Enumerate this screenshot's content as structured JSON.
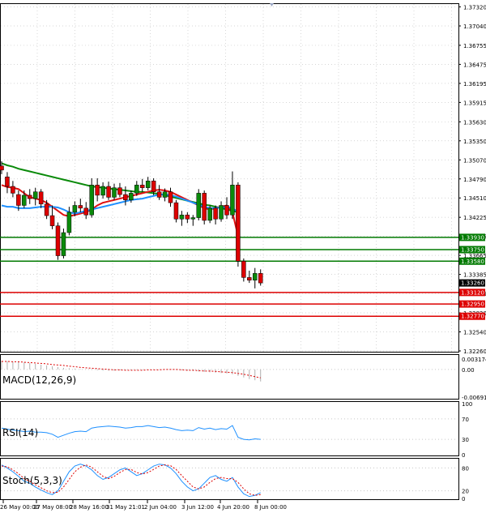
{
  "chart_data": {
    "type": "candlestick",
    "price_axis": {
      "ticks": [
        "1.37320",
        "1.37040",
        "1.36755",
        "1.36475",
        "1.36195",
        "1.35915",
        "1.35630",
        "1.35350",
        "1.35070",
        "1.34790",
        "1.34510",
        "1.34225",
        "1.33945",
        "1.33665",
        "1.33385",
        "1.33105",
        "1.32820",
        "1.32540",
        "1.32260"
      ],
      "min": 1.3226,
      "max": 1.3735
    },
    "time_axis": {
      "labels": [
        "26 May 00:00",
        "27 May 08:00",
        "28 May 16:00",
        "31 May 21:01",
        "2 Jun 04:00",
        "3 Jun 12:00",
        "4 Jun 20:00",
        "8 Jun 00:00"
      ]
    },
    "candles": [
      {
        "o": 1.3498,
        "h": 1.3505,
        "l": 1.3486,
        "c": 1.3492
      },
      {
        "o": 1.3482,
        "h": 1.3489,
        "l": 1.3458,
        "c": 1.3468
      },
      {
        "o": 1.3468,
        "h": 1.3476,
        "l": 1.3452,
        "c": 1.3458
      },
      {
        "o": 1.3456,
        "h": 1.3462,
        "l": 1.3432,
        "c": 1.344
      },
      {
        "o": 1.344,
        "h": 1.3462,
        "l": 1.3436,
        "c": 1.3455
      },
      {
        "o": 1.3455,
        "h": 1.3464,
        "l": 1.3442,
        "c": 1.345
      },
      {
        "o": 1.345,
        "h": 1.3466,
        "l": 1.344,
        "c": 1.346
      },
      {
        "o": 1.346,
        "h": 1.3464,
        "l": 1.3436,
        "c": 1.3442
      },
      {
        "o": 1.3442,
        "h": 1.3448,
        "l": 1.342,
        "c": 1.3425
      },
      {
        "o": 1.3425,
        "h": 1.344,
        "l": 1.3405,
        "c": 1.341
      },
      {
        "o": 1.341,
        "h": 1.3415,
        "l": 1.336,
        "c": 1.3366
      },
      {
        "o": 1.3366,
        "h": 1.3406,
        "l": 1.3362,
        "c": 1.34
      },
      {
        "o": 1.34,
        "h": 1.3438,
        "l": 1.3396,
        "c": 1.343
      },
      {
        "o": 1.343,
        "h": 1.3446,
        "l": 1.3424,
        "c": 1.344
      },
      {
        "o": 1.344,
        "h": 1.345,
        "l": 1.343,
        "c": 1.3436
      },
      {
        "o": 1.3436,
        "h": 1.3445,
        "l": 1.342,
        "c": 1.3426
      },
      {
        "o": 1.3426,
        "h": 1.348,
        "l": 1.3422,
        "c": 1.347
      },
      {
        "o": 1.347,
        "h": 1.348,
        "l": 1.3446,
        "c": 1.3455
      },
      {
        "o": 1.3455,
        "h": 1.3474,
        "l": 1.345,
        "c": 1.3468
      },
      {
        "o": 1.3468,
        "h": 1.3475,
        "l": 1.3448,
        "c": 1.3452
      },
      {
        "o": 1.3452,
        "h": 1.3472,
        "l": 1.3448,
        "c": 1.3466
      },
      {
        "o": 1.3466,
        "h": 1.3473,
        "l": 1.3452,
        "c": 1.3456
      },
      {
        "o": 1.3456,
        "h": 1.3468,
        "l": 1.344,
        "c": 1.3448
      },
      {
        "o": 1.3448,
        "h": 1.3462,
        "l": 1.3444,
        "c": 1.3458
      },
      {
        "o": 1.3458,
        "h": 1.3476,
        "l": 1.3454,
        "c": 1.347
      },
      {
        "o": 1.347,
        "h": 1.3479,
        "l": 1.346,
        "c": 1.3466
      },
      {
        "o": 1.3466,
        "h": 1.3482,
        "l": 1.3462,
        "c": 1.3476
      },
      {
        "o": 1.3476,
        "h": 1.348,
        "l": 1.3455,
        "c": 1.346
      },
      {
        "o": 1.346,
        "h": 1.347,
        "l": 1.3448,
        "c": 1.3452
      },
      {
        "o": 1.3452,
        "h": 1.3465,
        "l": 1.3446,
        "c": 1.346
      },
      {
        "o": 1.346,
        "h": 1.3466,
        "l": 1.3438,
        "c": 1.3444
      },
      {
        "o": 1.3444,
        "h": 1.3448,
        "l": 1.3415,
        "c": 1.342
      },
      {
        "o": 1.342,
        "h": 1.3432,
        "l": 1.341,
        "c": 1.3426
      },
      {
        "o": 1.3426,
        "h": 1.343,
        "l": 1.3414,
        "c": 1.342
      },
      {
        "o": 1.342,
        "h": 1.3426,
        "l": 1.341,
        "c": 1.3422
      },
      {
        "o": 1.3422,
        "h": 1.3464,
        "l": 1.3418,
        "c": 1.3458
      },
      {
        "o": 1.3458,
        "h": 1.3462,
        "l": 1.3412,
        "c": 1.3418
      },
      {
        "o": 1.3418,
        "h": 1.344,
        "l": 1.3414,
        "c": 1.3436
      },
      {
        "o": 1.3436,
        "h": 1.344,
        "l": 1.3412,
        "c": 1.342
      },
      {
        "o": 1.342,
        "h": 1.3446,
        "l": 1.3416,
        "c": 1.344
      },
      {
        "o": 1.344,
        "h": 1.3452,
        "l": 1.342,
        "c": 1.3426
      },
      {
        "o": 1.3426,
        "h": 1.349,
        "l": 1.342,
        "c": 1.347
      },
      {
        "o": 1.347,
        "h": 1.3474,
        "l": 1.335,
        "c": 1.3358
      },
      {
        "o": 1.3358,
        "h": 1.3362,
        "l": 1.3328,
        "c": 1.3334
      },
      {
        "o": 1.3334,
        "h": 1.3344,
        "l": 1.3326,
        "c": 1.333
      },
      {
        "o": 1.333,
        "h": 1.3348,
        "l": 1.3318,
        "c": 1.334
      },
      {
        "o": 1.334,
        "h": 1.3346,
        "l": 1.3322,
        "c": 1.3326
      }
    ],
    "moving_averages": [
      {
        "color": "#0a8a0a",
        "values": [
          1.3502,
          1.3499,
          1.3497,
          1.3494,
          1.3492,
          1.349,
          1.3488,
          1.3486,
          1.3484,
          1.3482,
          1.348,
          1.3478,
          1.3476,
          1.3474,
          1.3472,
          1.347,
          1.3468,
          1.3467,
          1.3466,
          1.3465,
          1.3464,
          1.3463,
          1.3462,
          1.3461,
          1.346,
          1.346,
          1.3459,
          1.3458,
          1.3457,
          1.3455,
          1.3453,
          1.3451,
          1.3449,
          1.3447,
          1.3445,
          1.3443,
          1.3441,
          1.344,
          1.3438,
          1.3436,
          1.3434,
          1.3432,
          1.343
        ]
      },
      {
        "color": "#e01010",
        "values": [
          1.347,
          1.3467,
          1.3466,
          1.3464,
          1.3458,
          1.3452,
          1.345,
          1.3448,
          1.3444,
          1.3438,
          1.3432,
          1.3426,
          1.3424,
          1.3426,
          1.3428,
          1.343,
          1.3434,
          1.344,
          1.3444,
          1.3446,
          1.3448,
          1.345,
          1.3452,
          1.3454,
          1.3456,
          1.3458,
          1.346,
          1.3462,
          1.3463,
          1.3462,
          1.346,
          1.3456,
          1.3452,
          1.3448,
          1.3444,
          1.344,
          1.3436,
          1.3434,
          1.3436,
          1.3438,
          1.344,
          1.343,
          1.3395
        ]
      },
      {
        "color": "#1e90ff",
        "values": [
          1.344,
          1.3438,
          1.3438,
          1.3436,
          1.3436,
          1.3436,
          1.3437,
          1.3438,
          1.3438,
          1.3438,
          1.3437,
          1.3434,
          1.343,
          1.3428,
          1.343,
          1.3432,
          1.3434,
          1.3436,
          1.3438,
          1.344,
          1.3442,
          1.3444,
          1.3446,
          1.3448,
          1.3449,
          1.345,
          1.3452,
          1.3454,
          1.3456,
          1.3456,
          1.3455,
          1.3453,
          1.345,
          1.3447,
          1.3444,
          1.3441,
          1.3438,
          1.3436,
          1.3436,
          1.3437,
          1.3438,
          1.3436,
          1.343
        ]
      }
    ],
    "levels": [
      {
        "value": 1.3393,
        "label": "1.33930",
        "color": "#007a00"
      },
      {
        "value": 1.3375,
        "label": "1.33750",
        "color": "#007a00"
      },
      {
        "value": 1.3358,
        "label": "1.33580",
        "color": "#007a00"
      },
      {
        "value": 1.3312,
        "label": "1.33120",
        "color": "#dd0000"
      },
      {
        "value": 1.3295,
        "label": "1.32950",
        "color": "#dd0000"
      },
      {
        "value": 1.3277,
        "label": "1.32770",
        "color": "#dd0000"
      }
    ],
    "current_price": {
      "value": 1.3326,
      "label": "1.33260"
    },
    "macd": {
      "label": "MACD(12,26,9)",
      "ticks": [
        "0.003174",
        "0.00",
        "-0.006918"
      ],
      "min": -0.0069,
      "max": 0.0032,
      "histogram": [
        0.0022,
        0.0021,
        0.002,
        0.0019,
        0.0018,
        0.0016,
        0.0014,
        0.0012,
        0.001,
        0.0008,
        0.0006,
        0.0004,
        0.0003,
        0.0002,
        0.0001,
        0.0,
        -0.0001,
        -0.0002,
        -0.0003,
        -0.0003,
        -0.0003,
        -0.0002,
        -0.0002,
        -0.0002,
        -0.0001,
        -0.0001,
        0.0,
        0.0,
        0.0,
        0.0,
        0.0,
        -0.0001,
        -0.0002,
        -0.0003,
        -0.0004,
        -0.0005,
        -0.0006,
        -0.0007,
        -0.0008,
        -0.0009,
        -0.001,
        -0.0012,
        -0.0016,
        -0.002,
        -0.0024,
        -0.0027,
        -0.003
      ],
      "signal": [
        0.002,
        0.002,
        0.0019,
        0.0019,
        0.0018,
        0.0017,
        0.0016,
        0.0015,
        0.0014,
        0.0012,
        0.0011,
        0.001,
        0.0008,
        0.0007,
        0.0005,
        0.0004,
        0.0003,
        0.0002,
        0.0001,
        0.0,
        -0.0001,
        -0.0001,
        -0.0002,
        -0.0002,
        -0.0002,
        -0.0002,
        -0.0001,
        -0.0001,
        -0.0001,
        0.0,
        0.0,
        0.0,
        -0.0001,
        -0.0002,
        -0.0002,
        -0.0003,
        -0.0004,
        -0.0004,
        -0.0005,
        -0.0006,
        -0.0007,
        -0.0008,
        -0.001,
        -0.0012,
        -0.0015,
        -0.0018,
        -0.0021
      ]
    },
    "rsi": {
      "label": "RSI(14)",
      "ticks": [
        "100",
        "70",
        "30",
        "0"
      ],
      "values": [
        52,
        50,
        48,
        47,
        45,
        46,
        44,
        44,
        43,
        40,
        34,
        38,
        42,
        45,
        46,
        45,
        52,
        54,
        55,
        56,
        55,
        54,
        52,
        53,
        55,
        55,
        57,
        55,
        53,
        54,
        52,
        49,
        47,
        48,
        47,
        53,
        50,
        52,
        49,
        51,
        50,
        57,
        34,
        30,
        29,
        31,
        30
      ]
    },
    "stochastic": {
      "label": "Stoch(5,3,3)",
      "ticks": [
        "80",
        "20",
        "0"
      ],
      "k": [
        88,
        80,
        70,
        58,
        45,
        40,
        30,
        22,
        15,
        10,
        20,
        45,
        70,
        85,
        90,
        85,
        75,
        60,
        50,
        55,
        65,
        75,
        80,
        70,
        60,
        65,
        75,
        85,
        90,
        88,
        80,
        65,
        45,
        30,
        20,
        25,
        40,
        55,
        60,
        50,
        45,
        55,
        30,
        12,
        5,
        8,
        15
      ],
      "d": [
        85,
        83,
        75,
        65,
        52,
        45,
        36,
        28,
        20,
        15,
        16,
        30,
        50,
        70,
        82,
        88,
        82,
        70,
        58,
        52,
        58,
        68,
        76,
        76,
        68,
        64,
        68,
        76,
        85,
        88,
        86,
        76,
        60,
        45,
        30,
        25,
        30,
        42,
        52,
        55,
        52,
        52,
        42,
        25,
        12,
        8,
        10
      ]
    }
  }
}
